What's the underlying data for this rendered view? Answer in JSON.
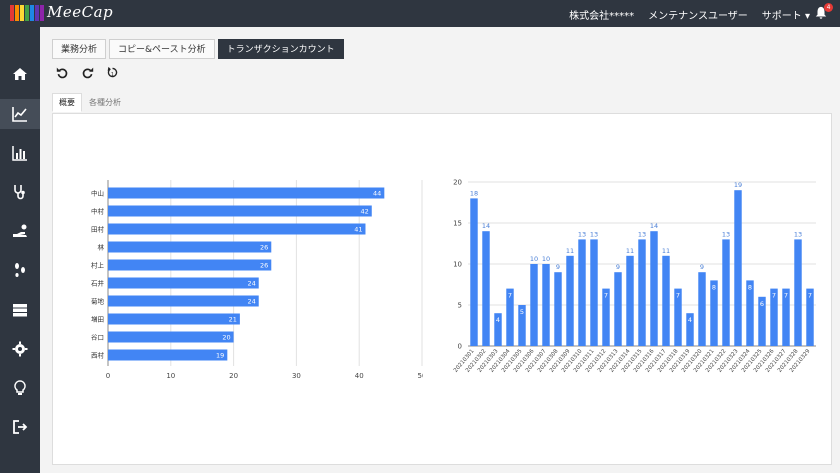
{
  "app": {
    "logo_text": "MeeCap",
    "logo_colors": [
      "#e53935",
      "#fb8c00",
      "#fdd835",
      "#43a047",
      "#1e88e5",
      "#5e35b1",
      "#8e24aa"
    ],
    "company": "株式会社*****",
    "user": "メンテナンスユーザー",
    "support": "サポート",
    "notification_count": "4"
  },
  "sidebar": {
    "items": [
      {
        "icon": "home-icon"
      },
      {
        "icon": "line-chart-icon",
        "active": true
      },
      {
        "icon": "bar-chart-icon"
      },
      {
        "icon": "stethoscope-icon"
      },
      {
        "icon": "hand-icon"
      },
      {
        "icon": "footprints-icon"
      },
      {
        "icon": "server-icon"
      },
      {
        "icon": "gear-icon"
      },
      {
        "icon": "lightbulb-icon"
      },
      {
        "icon": "sign-out-icon"
      }
    ]
  },
  "tabs": [
    {
      "label": "業務分析"
    },
    {
      "label": "コピー&ペースト分析"
    },
    {
      "label": "トランザクションカウント",
      "active": true
    }
  ],
  "toolbar": {
    "undo_icon": "undo-icon",
    "redo_icon": "redo-icon",
    "reset_icon": "reset-icon"
  },
  "subtabs": [
    {
      "label": "概要",
      "active": true
    },
    {
      "label": "各種分析"
    }
  ],
  "colors": {
    "bar": "#4285f4",
    "accent_dark": "#2f3640"
  },
  "chart_data": [
    {
      "type": "bar",
      "orientation": "horizontal",
      "categories": [
        "中山",
        "中村",
        "田村",
        "林",
        "村上",
        "石井",
        "菊地",
        "増田",
        "谷口",
        "西村"
      ],
      "values": [
        44,
        42,
        41,
        26,
        26,
        24,
        24,
        21,
        20,
        19
      ],
      "xticks": [
        0,
        10,
        20,
        30,
        40,
        50
      ],
      "xlim": [
        0,
        50
      ],
      "grid": true
    },
    {
      "type": "bar",
      "categories": [
        "20210301",
        "20210302",
        "20210303",
        "20210304",
        "20210305",
        "20210306",
        "20210307",
        "20210308",
        "20210309",
        "20210310",
        "20210311",
        "20210312",
        "20210313",
        "20210314",
        "20210315",
        "20210316",
        "20210317",
        "20210318",
        "20210319",
        "20210320",
        "20210321",
        "20210322",
        "20210323",
        "20210324",
        "20210325",
        "20210326",
        "20210327",
        "20210328",
        "20210329"
      ],
      "values": [
        18,
        14,
        4,
        7,
        5,
        10,
        10,
        9,
        11,
        13,
        13,
        7,
        9,
        11,
        13,
        14,
        11,
        7,
        4,
        9,
        8,
        13,
        19,
        8,
        6,
        7,
        7,
        13,
        7
      ],
      "yticks": [
        0,
        5,
        10,
        15,
        20
      ],
      "ylim": [
        0,
        20
      ],
      "grid": true
    }
  ]
}
